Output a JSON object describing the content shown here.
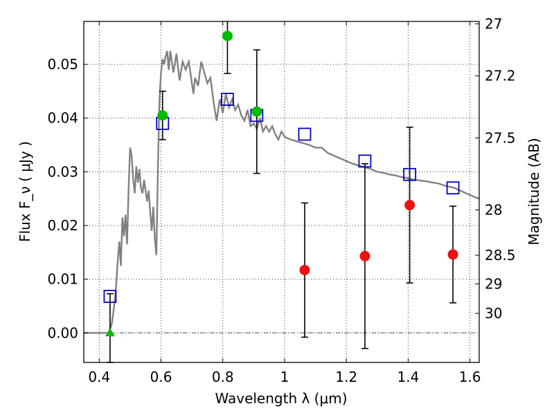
{
  "chart_data": {
    "type": "scatter",
    "xlabel": "Wavelength  λ (μm)",
    "ylabel": "Flux  F_ν  ( μJy )",
    "y2label": "Magnitude (AB)",
    "xlim": [
      0.35,
      1.63
    ],
    "ylim": [
      -0.0055,
      0.058
    ],
    "x_ticks": [
      0.4,
      0.6,
      0.8,
      1.0,
      1.2,
      1.4,
      1.6
    ],
    "x_tick_labels": [
      "0.4",
      "0.6",
      "0.8",
      "1",
      "1.2",
      "1.4",
      "1.6"
    ],
    "y_ticks": [
      0.0,
      0.01,
      0.02,
      0.03,
      0.04,
      0.05
    ],
    "y_tick_labels": [
      "0.00",
      "0.01",
      "0.02",
      "0.03",
      "0.04",
      "0.05"
    ],
    "y2_ticks": [
      {
        "mag": 27,
        "label": "27"
      },
      {
        "mag": 27.2,
        "label": "27.2"
      },
      {
        "mag": 27.5,
        "label": "27.5"
      },
      {
        "mag": 28,
        "label": "28"
      },
      {
        "mag": 28.5,
        "label": "28.5"
      },
      {
        "mag": 29,
        "label": "29"
      },
      {
        "mag": 30,
        "label": "30"
      }
    ],
    "grid": true,
    "colors": {
      "sed_line": "#808080",
      "model_box": "#0000cc",
      "detection": "#00bb00",
      "nondetection": "#ee1111",
      "errorbar": "#000000",
      "zero_line": "#555555"
    },
    "series": [
      {
        "kind": "line",
        "points": [
          [
            0.35,
            0.0
          ],
          [
            0.43,
            0.0
          ],
          [
            0.435,
            0.0008
          ],
          [
            0.44,
            0.0015
          ],
          [
            0.445,
            0.0035
          ],
          [
            0.45,
            0.006
          ],
          [
            0.455,
            0.009
          ],
          [
            0.46,
            0.0135
          ],
          [
            0.465,
            0.017
          ],
          [
            0.47,
            0.0125
          ],
          [
            0.475,
            0.0215
          ],
          [
            0.48,
            0.018
          ],
          [
            0.485,
            0.022
          ],
          [
            0.49,
            0.0165
          ],
          [
            0.495,
            0.027
          ],
          [
            0.5,
            0.0345
          ],
          [
            0.505,
            0.033
          ],
          [
            0.51,
            0.0285
          ],
          [
            0.515,
            0.026
          ],
          [
            0.52,
            0.031
          ],
          [
            0.525,
            0.028
          ],
          [
            0.53,
            0.0305
          ],
          [
            0.535,
            0.027
          ],
          [
            0.54,
            0.026
          ],
          [
            0.545,
            0.0285
          ],
          [
            0.55,
            0.0265
          ],
          [
            0.555,
            0.0245
          ],
          [
            0.56,
            0.0265
          ],
          [
            0.565,
            0.0225
          ],
          [
            0.57,
            0.019
          ],
          [
            0.575,
            0.0235
          ],
          [
            0.58,
            0.0175
          ],
          [
            0.585,
            0.0145
          ],
          [
            0.59,
            0.031
          ],
          [
            0.595,
            0.0435
          ],
          [
            0.6,
            0.0485
          ],
          [
            0.605,
            0.051
          ],
          [
            0.61,
            0.05
          ],
          [
            0.615,
            0.0515
          ],
          [
            0.62,
            0.0525
          ],
          [
            0.625,
            0.049
          ],
          [
            0.63,
            0.0525
          ],
          [
            0.64,
            0.0485
          ],
          [
            0.65,
            0.052
          ],
          [
            0.66,
            0.047
          ],
          [
            0.67,
            0.0505
          ],
          [
            0.68,
            0.049
          ],
          [
            0.69,
            0.0505
          ],
          [
            0.7,
            0.0465
          ],
          [
            0.705,
            0.0445
          ],
          [
            0.71,
            0.0475
          ],
          [
            0.72,
            0.046
          ],
          [
            0.73,
            0.0505
          ],
          [
            0.74,
            0.0485
          ],
          [
            0.75,
            0.0465
          ],
          [
            0.76,
            0.0475
          ],
          [
            0.77,
            0.043
          ],
          [
            0.78,
            0.0395
          ],
          [
            0.79,
            0.0435
          ],
          [
            0.8,
            0.041
          ],
          [
            0.81,
            0.0445
          ],
          [
            0.82,
            0.042
          ],
          [
            0.83,
            0.0435
          ],
          [
            0.84,
            0.0415
          ],
          [
            0.85,
            0.0425
          ],
          [
            0.86,
            0.0405
          ],
          [
            0.87,
            0.0395
          ],
          [
            0.88,
            0.0415
          ],
          [
            0.89,
            0.0385
          ],
          [
            0.9,
            0.039
          ],
          [
            0.91,
            0.038
          ],
          [
            0.92,
            0.04
          ],
          [
            0.93,
            0.0375
          ],
          [
            0.94,
            0.0385
          ],
          [
            0.95,
            0.0375
          ],
          [
            0.96,
            0.0385
          ],
          [
            0.97,
            0.037
          ],
          [
            0.98,
            0.036
          ],
          [
            0.99,
            0.0375
          ],
          [
            1.0,
            0.0365
          ],
          [
            1.02,
            0.036
          ],
          [
            1.05,
            0.0355
          ],
          [
            1.08,
            0.035
          ],
          [
            1.1,
            0.0345
          ],
          [
            1.12,
            0.0345
          ],
          [
            1.14,
            0.0335
          ],
          [
            1.16,
            0.033
          ],
          [
            1.18,
            0.0325
          ],
          [
            1.2,
            0.032
          ],
          [
            1.22,
            0.0315
          ],
          [
            1.25,
            0.031
          ],
          [
            1.28,
            0.0305
          ],
          [
            1.3,
            0.03
          ],
          [
            1.32,
            0.0298
          ],
          [
            1.34,
            0.0295
          ],
          [
            1.36,
            0.0293
          ],
          [
            1.38,
            0.029
          ],
          [
            1.4,
            0.0288
          ],
          [
            1.42,
            0.0285
          ],
          [
            1.45,
            0.0283
          ],
          [
            1.48,
            0.028
          ],
          [
            1.5,
            0.0278
          ],
          [
            1.52,
            0.0274
          ],
          [
            1.55,
            0.027
          ],
          [
            1.58,
            0.0262
          ],
          [
            1.6,
            0.0257
          ],
          [
            1.62,
            0.0252
          ],
          [
            1.63,
            0.025
          ]
        ]
      },
      {
        "kind": "model_boxes",
        "points": [
          [
            0.435,
            0.0068
          ],
          [
            0.605,
            0.039
          ],
          [
            0.815,
            0.0435
          ],
          [
            0.91,
            0.0405
          ],
          [
            1.065,
            0.037
          ],
          [
            1.26,
            0.032
          ],
          [
            1.405,
            0.0295
          ],
          [
            1.545,
            0.027
          ]
        ]
      },
      {
        "kind": "detections",
        "points": [
          [
            0.605,
            0.0405,
            0.0045
          ],
          [
            0.815,
            0.0553,
            0.007
          ],
          [
            0.91,
            0.0412,
            0.0115
          ]
        ]
      },
      {
        "kind": "nondetections",
        "points": [
          [
            1.065,
            0.0117,
            0.0125
          ],
          [
            1.26,
            0.0143,
            0.0172
          ],
          [
            1.405,
            0.0238,
            0.0145
          ],
          [
            1.545,
            0.0146,
            0.009
          ]
        ]
      },
      {
        "kind": "upper_limit",
        "points": [
          [
            0.435,
            0.0,
            0.0073
          ]
        ]
      }
    ]
  }
}
